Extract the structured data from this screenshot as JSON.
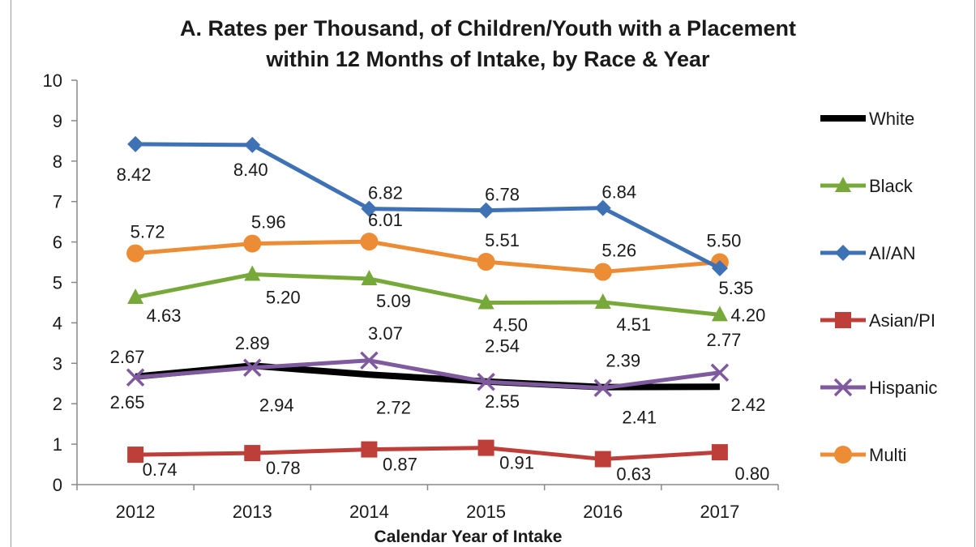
{
  "chart_data": {
    "type": "line",
    "title_line1": "A. Rates per Thousand,  of Children/Youth with a Placement",
    "title_line2": "within 12 Months of Intake, by Race & Year",
    "xlabel": "Calendar Year of Intake",
    "ylabel": "",
    "categories": [
      "2012",
      "2013",
      "2014",
      "2015",
      "2016",
      "2017"
    ],
    "ylim": [
      0,
      10
    ],
    "yticks": [
      "0",
      "1",
      "2",
      "3",
      "4",
      "5",
      "6",
      "7",
      "8",
      "9",
      "10"
    ],
    "grid": false,
    "legend_position": "right",
    "series": [
      {
        "name": "White",
        "color": "#000000",
        "marker": "none",
        "values": [
          2.67,
          2.94,
          2.72,
          2.55,
          2.41,
          2.42
        ],
        "labels": [
          "2.67",
          "2.94",
          "2.72",
          "2.55",
          "2.41",
          "2.42"
        ]
      },
      {
        "name": "Black",
        "color": "#77a93a",
        "marker": "triangle",
        "values": [
          4.63,
          5.2,
          5.09,
          4.5,
          4.51,
          4.2
        ],
        "labels": [
          "4.63",
          "5.20",
          "5.09",
          "4.50",
          "4.51",
          "4.20"
        ]
      },
      {
        "name": "AI/AN",
        "color": "#3f72b5",
        "marker": "diamond",
        "values": [
          8.42,
          8.4,
          6.82,
          6.78,
          6.84,
          5.35
        ],
        "labels": [
          "8.42",
          "8.40",
          "6.82",
          "6.78",
          "6.84",
          "5.35"
        ]
      },
      {
        "name": "Asian/PI",
        "color": "#be3f3a",
        "marker": "square",
        "values": [
          0.74,
          0.78,
          0.87,
          0.91,
          0.63,
          0.8
        ],
        "labels": [
          "0.74",
          "0.78",
          "0.87",
          "0.91",
          "0.63",
          "0.80"
        ]
      },
      {
        "name": "Hispanic",
        "color": "#7f5a9e",
        "marker": "x",
        "values": [
          2.65,
          2.89,
          3.07,
          2.54,
          2.39,
          2.77
        ],
        "labels": [
          "2.65",
          "2.89",
          "3.07",
          "2.54",
          "2.39",
          "2.77"
        ]
      },
      {
        "name": "Multi",
        "color": "#ec8c34",
        "marker": "circle",
        "values": [
          5.72,
          5.96,
          6.01,
          5.51,
          5.26,
          5.5
        ],
        "labels": [
          "5.72",
          "5.96",
          "6.01",
          "5.51",
          "5.26",
          "5.50"
        ]
      }
    ]
  }
}
